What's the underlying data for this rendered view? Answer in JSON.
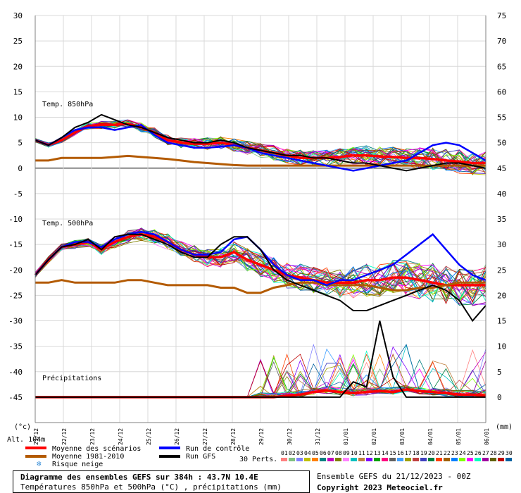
{
  "chart_data": {
    "type": "line",
    "title": "Diagramme des ensembles GEFS sur 384h : 43.7N 10.4E",
    "subtitle": "Températures 850hPa et 500hPa (°C) , précipitations (mm)",
    "run_info": "Ensemble GEFS du 21/12/2023 - 00Z",
    "copyright": "Copyright 2023 Meteociel.fr",
    "y_left_unit": "(°c)",
    "y_right_unit": "(mm)",
    "alt_label": "Alt. 104m",
    "y_left_range": [
      -50,
      30
    ],
    "y_right_range": [
      0,
      75
    ],
    "y_left_ticks": [
      30,
      25,
      20,
      15,
      10,
      5,
      0,
      -5,
      -10,
      -15,
      -20,
      -25,
      -30,
      -35,
      -40,
      -45
    ],
    "y_right_ticks": [
      75,
      70,
      65,
      60,
      55,
      50,
      45,
      40,
      35,
      30,
      25,
      20,
      15,
      10,
      5,
      0
    ],
    "x_labels": [
      "21/12",
      "22/12",
      "23/12",
      "24/12",
      "25/12",
      "26/12",
      "27/12",
      "28/12",
      "29/12",
      "30/12",
      "31/12",
      "01/01",
      "02/01",
      "03/01",
      "04/01",
      "05/01",
      "06/01"
    ],
    "panel_labels": {
      "t850": "Temp. 850hPa",
      "t500": "Temp. 500hPa",
      "precip": "Précipitations"
    },
    "legend": {
      "mean": {
        "label": "Moyenne des scénarios",
        "color": "#ff0000"
      },
      "clim": {
        "label": "Moyenne 1981-2010",
        "color": "#b35a00"
      },
      "snow": {
        "label": "Risque neige",
        "icon": "snowflake"
      },
      "control": {
        "label": "Run de contrôle",
        "color": "#0000ff"
      },
      "gfs": {
        "label": "Run GFS",
        "color": "#000000"
      }
    },
    "perts_label": "30 Perts.",
    "member_labels": [
      "01",
      "02",
      "03",
      "04",
      "05",
      "06",
      "07",
      "08",
      "09",
      "10",
      "11",
      "12",
      "13",
      "14",
      "15",
      "16",
      "17",
      "18",
      "19",
      "20",
      "21",
      "22",
      "23",
      "24",
      "25",
      "26",
      "27",
      "28",
      "29",
      "30"
    ],
    "member_colors": [
      "#ff8080",
      "#80c080",
      "#8080ff",
      "#c0c000",
      "#ff8000",
      "#008080",
      "#c000c0",
      "#808000",
      "#ff80ff",
      "#00c0c0",
      "#c08040",
      "#8000ff",
      "#00a000",
      "#ff0080",
      "#606060",
      "#40a0ff",
      "#a0a000",
      "#c04040",
      "#4040c0",
      "#008040",
      "#ff4000",
      "#a06000",
      "#0080ff",
      "#80ff00",
      "#ff00ff",
      "#00ffc0",
      "#a000a0",
      "#606000",
      "#c00000",
      "#0060a0"
    ],
    "series": [
      {
        "name": "Moyenne des scénarios 850hPa",
        "color": "#ff0000",
        "values": [
          5.5,
          4.5,
          5.5,
          7,
          8.3,
          8.5,
          8.5,
          8.7,
          8,
          7,
          5.5,
          5,
          4.8,
          4.8,
          5,
          4.5,
          4,
          3.5,
          3,
          2.5,
          2,
          2,
          2,
          2.2,
          2.5,
          2.5,
          2.3,
          2.2,
          2,
          2,
          1.8,
          1.5,
          1.3,
          1,
          1
        ]
      },
      {
        "name": "Moyenne 1981-2010 850hPa",
        "color": "#b35a00",
        "values": [
          1.5,
          1.5,
          2,
          2,
          2,
          2,
          2.2,
          2.4,
          2.2,
          2,
          1.8,
          1.5,
          1.2,
          1,
          0.8,
          0.6,
          0.5,
          0.5,
          0.5,
          0.5,
          0.5,
          0.5,
          0.5,
          0.5,
          0.5,
          0.5,
          0.5,
          0.5,
          0.5,
          0.5,
          0.5,
          0.5,
          0.5,
          0.5,
          0.5
        ]
      },
      {
        "name": "Run de contrôle 850hPa",
        "color": "#0000ff",
        "values": [
          5.5,
          4.5,
          6,
          7.5,
          8,
          8,
          7.5,
          8,
          8.5,
          6.5,
          5,
          4.5,
          4,
          4,
          4.2,
          4.5,
          4,
          3,
          2.5,
          2,
          1.5,
          1,
          0.5,
          0,
          -0.5,
          0,
          0.5,
          1,
          1.5,
          3,
          4.5,
          5,
          4.5,
          3,
          1.5
        ]
      },
      {
        "name": "Run GFS 850hPa",
        "color": "#000000",
        "values": [
          5.5,
          4.5,
          6,
          8,
          9,
          10.5,
          9.5,
          8.5,
          8,
          7,
          6,
          5.5,
          5,
          5,
          5.5,
          5,
          4,
          3.5,
          3,
          2.5,
          2.5,
          2,
          2,
          1.5,
          1,
          1,
          0.5,
          0,
          -0.5,
          0,
          0.5,
          1,
          1,
          0.5,
          0
        ]
      },
      {
        "name": "Moyenne des scénarios 500hPa",
        "color": "#ff0000",
        "values": [
          -21,
          -18,
          -15.5,
          -15,
          -14.5,
          -16,
          -14.5,
          -13.5,
          -13,
          -13.5,
          -14.5,
          -16,
          -17,
          -17.5,
          -17.5,
          -16.5,
          -18,
          -19,
          -20,
          -21,
          -21.5,
          -22,
          -22.5,
          -22.5,
          -22.5,
          -22,
          -22,
          -21.5,
          -21.5,
          -22,
          -22.5,
          -23,
          -23,
          -23,
          -23
        ]
      },
      {
        "name": "Moyenne 1981-2010 500hPa",
        "color": "#b35a00",
        "values": [
          -22.5,
          -22.5,
          -22,
          -22.5,
          -22.5,
          -22.5,
          -22.5,
          -22,
          -22,
          -22.5,
          -23,
          -23,
          -23,
          -23,
          -23.5,
          -23.5,
          -24.5,
          -24.5,
          -23.5,
          -23,
          -22.5,
          -22.5,
          -23,
          -23,
          -23,
          -23,
          -23.5,
          -24,
          -24,
          -23.5,
          -23.5,
          -23,
          -22.5,
          -22.5,
          -22.5
        ]
      },
      {
        "name": "Run de contrôle 500hPa",
        "color": "#0000ff",
        "values": [
          -21,
          -18,
          -15.5,
          -14.5,
          -14.5,
          -15.5,
          -14,
          -13,
          -12.5,
          -13,
          -14.5,
          -16,
          -17,
          -17,
          -16.5,
          -14,
          -13.5,
          -16,
          -19,
          -21,
          -22,
          -22,
          -23,
          -22,
          -22,
          -21,
          -20,
          -19,
          -17,
          -15,
          -13,
          -16,
          -19,
          -21,
          -22
        ]
      },
      {
        "name": "Run GFS 500hPa",
        "color": "#000000",
        "values": [
          -21,
          -18,
          -15.5,
          -15,
          -14,
          -16,
          -13.5,
          -13,
          -13,
          -14,
          -15,
          -16.5,
          -17.5,
          -17.5,
          -15,
          -13.5,
          -13.5,
          -16,
          -20,
          -22,
          -23,
          -24,
          -25,
          -26,
          -28,
          -28,
          -27,
          -26,
          -25,
          -24,
          -23,
          -24,
          -26,
          -30,
          -27
        ]
      },
      {
        "name": "Moyenne des scénarios précipitations",
        "color": "#ff0000",
        "values": [
          0,
          0,
          0,
          0,
          0,
          0,
          0,
          0,
          0,
          0,
          0,
          0,
          0,
          0,
          0,
          0,
          0,
          0,
          0,
          0.3,
          0.5,
          1,
          1.3,
          1,
          0.8,
          1,
          1.2,
          1,
          1.5,
          1.2,
          1,
          0.8,
          0.5,
          0.5,
          0.3
        ]
      },
      {
        "name": "Run GFS précipitations",
        "color": "#000000",
        "values": [
          0,
          0,
          0,
          0,
          0,
          0,
          0,
          0,
          0,
          0,
          0,
          0,
          0,
          0,
          0,
          0,
          0,
          0,
          0,
          0,
          0,
          0,
          0,
          0,
          3,
          2,
          15,
          4,
          0,
          0,
          0,
          0,
          0,
          0,
          0
        ]
      }
    ]
  }
}
